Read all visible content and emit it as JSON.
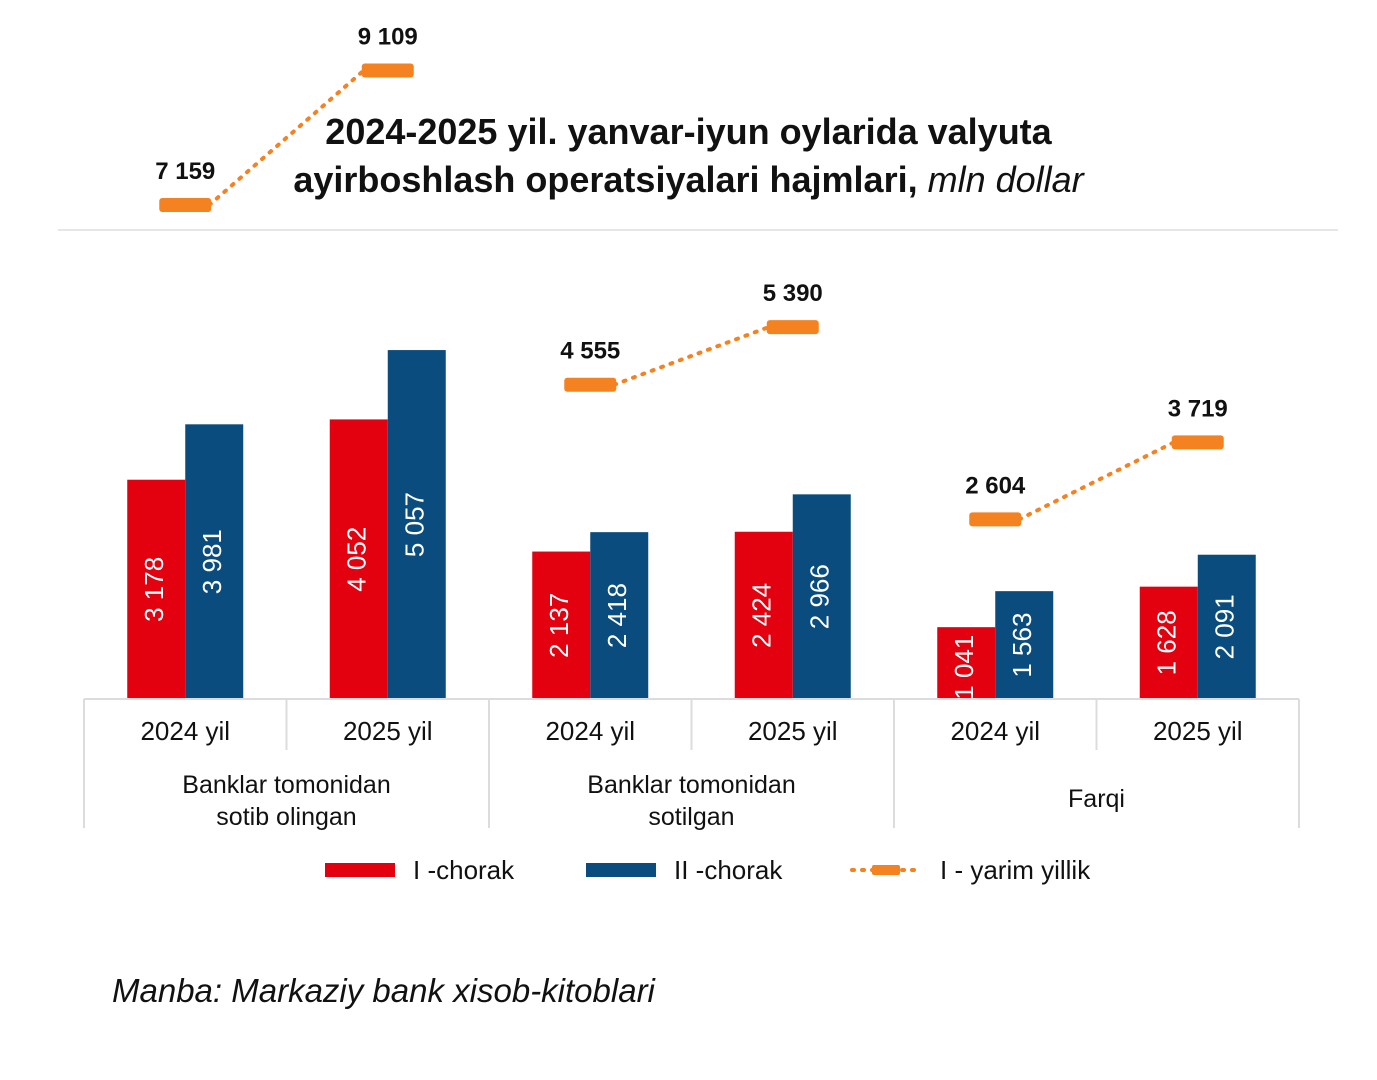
{
  "title": {
    "line1": "2024-2025 yil. yanvar-iyun oylarida valyuta",
    "line2": "ayirboshlash operatsiyalari hajmlari,",
    "unit": "mln dollar"
  },
  "source": "Manba: Markaziy bank xisob-kitoblari",
  "colors": {
    "q1": "#e3000f",
    "q2": "#0a4c7d",
    "half": "#f58220",
    "grid": "#dcdcdc"
  },
  "chart_data": {
    "type": "bar",
    "groups": [
      {
        "label": "Banklar tomonidan\nsotib olingan",
        "categories": [
          "2024 yil",
          "2025 yil"
        ]
      },
      {
        "label": "Banklar tomonidan\nsotilgan",
        "categories": [
          "2024 yil",
          "2025 yil"
        ]
      },
      {
        "label": "Farqi",
        "categories": [
          "2024 yil",
          "2025 yil"
        ]
      }
    ],
    "series": [
      {
        "name": "I -chorak",
        "values": [
          3178,
          4052,
          2137,
          2424,
          1041,
          1628
        ],
        "labels": [
          "3 178",
          "4 052",
          "2 137",
          "2 424",
          "1 041",
          "1 628"
        ]
      },
      {
        "name": "II -chorak",
        "values": [
          3981,
          5057,
          2418,
          2966,
          1563,
          2091
        ],
        "labels": [
          "3 981",
          "5 057",
          "2 418",
          "2 966",
          "1 563",
          "2 091"
        ]
      },
      {
        "name": "I - yarim yillik",
        "values": [
          7159,
          9109,
          4555,
          5390,
          2604,
          3719
        ],
        "labels": [
          "7 159",
          "9 109",
          "4 555",
          "5 390",
          "2 604",
          "3 719"
        ]
      }
    ]
  }
}
